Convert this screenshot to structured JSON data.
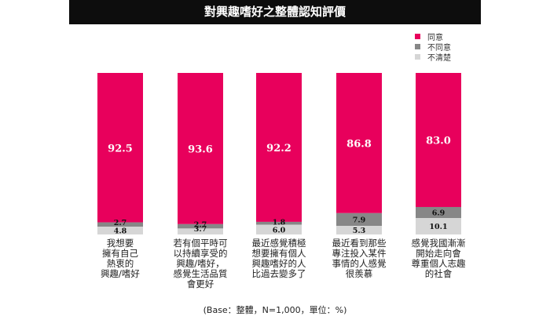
{
  "colors": {
    "agree": "#e8005c",
    "disagree": "#878787",
    "unsure": "#d6d6d6"
  },
  "chart_data": {
    "type": "bar",
    "stacked": true,
    "orientation": "vertical",
    "title": "對興趣嗜好之整體認知評價",
    "categories": [
      "我想要\n擁有自己\n熱衷的\n興趣/嗜好",
      "若有個平時可\n以持續享受的\n興趣/嗜好，\n感覺生活品質\n會更好",
      "最近感覺積極\n想要擁有個人\n興趣嗜好的人\n比過去變多了",
      "最近看到那些\n專注投入某件\n事情的人感覺\n很羨慕",
      "感覺我國漸漸\n開始走向會\n尊重個人志趣\n的社會"
    ],
    "series": [
      {
        "name": "同意",
        "values": [
          92.5,
          93.6,
          92.2,
          86.8,
          83.0
        ],
        "labels": [
          "92.5",
          "93.6",
          "92.2",
          "86.8",
          "83.0"
        ]
      },
      {
        "name": "不同意",
        "values": [
          2.7,
          2.7,
          1.8,
          7.9,
          6.9
        ],
        "labels": [
          "2.7",
          "2.7",
          "1.8",
          "7.9",
          "6.9"
        ]
      },
      {
        "name": "不清楚",
        "values": [
          4.8,
          3.7,
          6.0,
          5.3,
          10.1
        ],
        "labels": [
          "4.8",
          "3.7",
          "6.0",
          "5.3",
          "10.1"
        ]
      }
    ],
    "ylim": [
      0,
      100
    ],
    "legend_position": "top-right",
    "grid": false,
    "footnote": "(Base：整體，N=1,000，單位：%)"
  }
}
